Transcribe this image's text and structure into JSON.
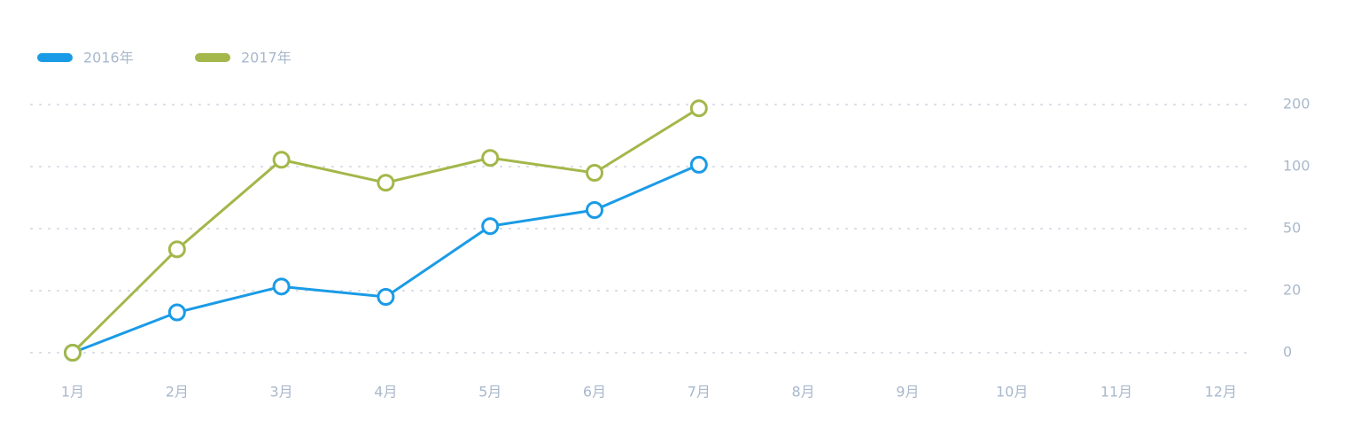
{
  "chart_data": {
    "type": "line",
    "categories": [
      "1月",
      "2月",
      "3月",
      "4月",
      "5月",
      "6月",
      "7月",
      "8月",
      "9月",
      "10月",
      "11月",
      "12月"
    ],
    "series": [
      {
        "name": "2016年",
        "color": "#1a9be6",
        "values": [
          0,
          13,
          22,
          18,
          52,
          65,
          103,
          null,
          null,
          null,
          null,
          null
        ]
      },
      {
        "name": "2017年",
        "color": "#a3b74a",
        "values": [
          0,
          40,
          111,
          87,
          114,
          95,
          194,
          null,
          null,
          null,
          null,
          null
        ]
      }
    ],
    "ylim": [
      0,
      200
    ],
    "yticks": [
      0,
      20,
      50,
      100,
      200
    ],
    "yscale": "piecewise",
    "y_axis_side": "right",
    "grid": true,
    "legend": "top-left"
  }
}
